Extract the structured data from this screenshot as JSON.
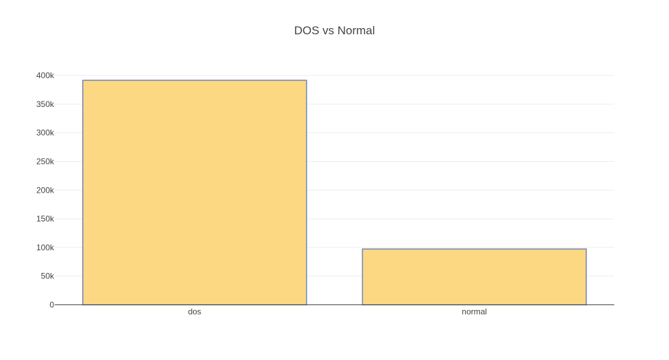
{
  "chart_data": {
    "type": "bar",
    "title": "DOS vs Normal",
    "categories": [
      "dos",
      "normal"
    ],
    "values": [
      391500,
      97300
    ],
    "xlabel": "",
    "ylabel": "",
    "ylim": [
      0,
      400000
    ],
    "yticks": [
      0,
      50000,
      100000,
      150000,
      200000,
      250000,
      300000,
      350000,
      400000
    ],
    "ytick_labels": [
      "0",
      "50k",
      "100k",
      "150k",
      "200k",
      "250k",
      "300k",
      "350k",
      "400k"
    ],
    "grid": true,
    "legend": "none",
    "colors": {
      "bar_fill": "#fdd883",
      "bar_stroke": "#6d84b4",
      "text": "#444444",
      "grid": "#eeeeee"
    }
  }
}
